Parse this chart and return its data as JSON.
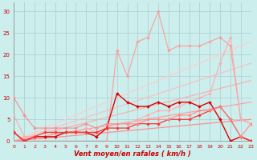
{
  "xlabel": "Vent moyen/en rafales ( km/h )",
  "xlim": [
    0,
    23
  ],
  "ylim": [
    0,
    32
  ],
  "xticks": [
    0,
    1,
    2,
    3,
    4,
    5,
    6,
    7,
    8,
    9,
    10,
    11,
    12,
    13,
    14,
    15,
    16,
    17,
    18,
    19,
    20,
    21,
    22,
    23
  ],
  "yticks": [
    0,
    5,
    10,
    15,
    20,
    25,
    30
  ],
  "bg_color": "#cceeed",
  "grid_color": "#aacccc",
  "series": [
    {
      "x": [
        0,
        23
      ],
      "y": [
        0,
        23
      ],
      "color": "#ffcccc",
      "alpha": 0.9,
      "lw": 0.9,
      "marker": null,
      "ms": 0
    },
    {
      "x": [
        0,
        23
      ],
      "y": [
        0,
        18
      ],
      "color": "#ffbbbb",
      "alpha": 0.9,
      "lw": 0.9,
      "marker": null,
      "ms": 0
    },
    {
      "x": [
        0,
        23
      ],
      "y": [
        0,
        14
      ],
      "color": "#ffaaaa",
      "alpha": 0.9,
      "lw": 0.9,
      "marker": null,
      "ms": 0
    },
    {
      "x": [
        0,
        23
      ],
      "y": [
        0,
        9
      ],
      "color": "#ff9999",
      "alpha": 0.9,
      "lw": 0.9,
      "marker": null,
      "ms": 0
    },
    {
      "x": [
        0,
        23
      ],
      "y": [
        0,
        5
      ],
      "color": "#ff8888",
      "alpha": 0.9,
      "lw": 0.9,
      "marker": null,
      "ms": 0
    },
    {
      "x": [
        0,
        1,
        9,
        10,
        11,
        12,
        13,
        14,
        15,
        16,
        17,
        18,
        19,
        20,
        21,
        22,
        23
      ],
      "y": [
        0,
        0,
        0,
        21,
        15,
        23,
        24,
        30,
        21,
        22,
        22,
        22,
        23,
        24,
        22,
        5,
        4
      ],
      "color": "#ff9999",
      "alpha": 0.85,
      "lw": 0.9,
      "marker": "D",
      "ms": 2.0
    },
    {
      "x": [
        0,
        1,
        2,
        3,
        4,
        5,
        6,
        7,
        8,
        9,
        10,
        11,
        12,
        13,
        14,
        15,
        16,
        17,
        18,
        19,
        20,
        21,
        22,
        23
      ],
      "y": [
        6,
        1,
        1,
        1,
        2,
        2,
        2,
        3,
        2,
        3,
        4,
        4,
        5,
        6,
        7,
        7,
        8,
        9,
        10,
        11,
        18,
        24,
        5,
        4
      ],
      "color": "#ffaaaa",
      "alpha": 0.85,
      "lw": 0.9,
      "marker": "D",
      "ms": 2.0
    },
    {
      "x": [
        0,
        1,
        2,
        3,
        4,
        5,
        6,
        7,
        8,
        9,
        10,
        11,
        12,
        13,
        14,
        15,
        16,
        17,
        18,
        19,
        20,
        21,
        22,
        23
      ],
      "y": [
        2,
        0,
        1,
        1,
        1,
        2,
        2,
        2,
        1,
        3,
        11,
        9,
        8,
        8,
        9,
        8,
        9,
        9,
        8,
        9,
        5,
        0,
        1,
        0
      ],
      "color": "#dd0000",
      "alpha": 1.0,
      "lw": 1.0,
      "marker": "D",
      "ms": 2.0
    },
    {
      "x": [
        0,
        1,
        2,
        3,
        4,
        5,
        6,
        7,
        8,
        9,
        10,
        11,
        12,
        13,
        14,
        15,
        16,
        17,
        18,
        19,
        20,
        21,
        22,
        23
      ],
      "y": [
        2,
        0,
        1,
        2,
        2,
        2,
        2,
        2,
        2,
        3,
        3,
        3,
        4,
        4,
        4,
        5,
        5,
        5,
        6,
        7,
        8,
        5,
        1,
        0
      ],
      "color": "#ff3333",
      "alpha": 1.0,
      "lw": 0.9,
      "marker": "D",
      "ms": 2.0
    },
    {
      "x": [
        0,
        1,
        2,
        3,
        4,
        5,
        6,
        7,
        8,
        9,
        10,
        11,
        12,
        13,
        14,
        15,
        16,
        17,
        18,
        19,
        20,
        21,
        22,
        23
      ],
      "y": [
        10,
        6,
        3,
        3,
        3,
        3,
        3,
        4,
        3,
        4,
        4,
        4,
        4,
        5,
        5,
        5,
        6,
        6,
        7,
        7,
        8,
        5,
        1,
        4
      ],
      "color": "#ff8888",
      "alpha": 0.85,
      "lw": 0.9,
      "marker": "D",
      "ms": 2.0
    }
  ]
}
